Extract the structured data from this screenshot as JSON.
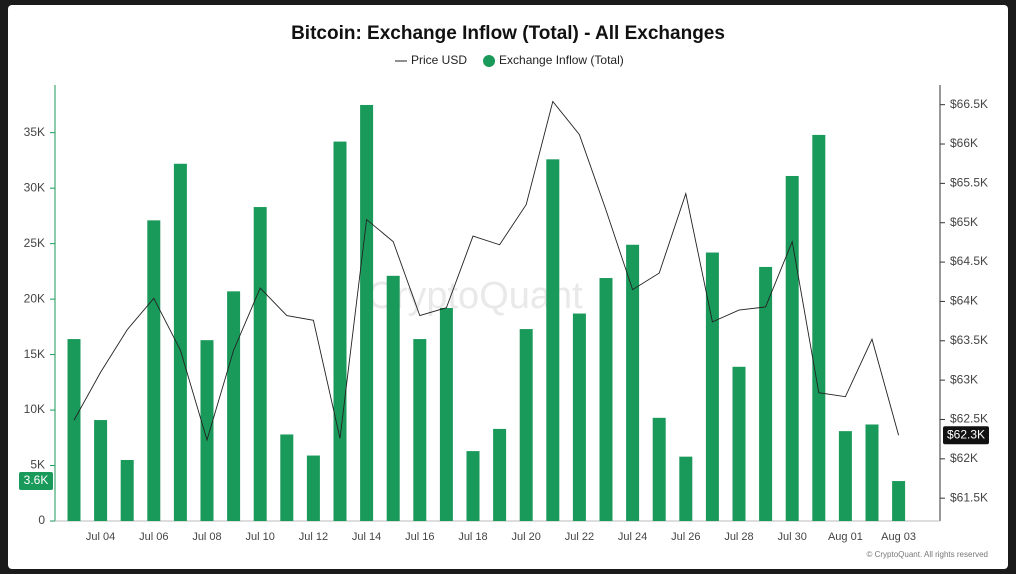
{
  "chart_data": {
    "type": "bar",
    "title": "Bitcoin: Exchange Inflow (Total) - All Exchanges",
    "watermark": "CryptoQuant",
    "copyright": "© CryptoQuant. All rights reserved",
    "categories": [
      null,
      "Jul 04",
      null,
      "Jul 06",
      null,
      "Jul 08",
      null,
      "Jul 10",
      null,
      "Jul 12",
      null,
      "Jul 14",
      null,
      "Jul 16",
      null,
      "Jul 18",
      null,
      "Jul 20",
      null,
      "Jul 22",
      null,
      "Jul 24",
      null,
      "Jul 26",
      null,
      "Jul 28",
      null,
      "Jul 30",
      null,
      "Aug 01",
      null,
      "Aug 03"
    ],
    "series": [
      {
        "name": "Price USD",
        "type": "line",
        "axis": "y2",
        "color": "#222222",
        "values": [
          62490,
          63100,
          63640,
          64040,
          63380,
          62240,
          63380,
          64170,
          63820,
          63760,
          62260,
          65040,
          64760,
          63820,
          63920,
          64830,
          64720,
          65230,
          66540,
          66120,
          65160,
          64150,
          64360,
          65370,
          63740,
          63890,
          63930,
          64760,
          62840,
          62790,
          63520,
          62300
        ],
        "value_labels": [
          null,
          null,
          null,
          null,
          null,
          null,
          null,
          null,
          null,
          null,
          null,
          null,
          null,
          null,
          null,
          null,
          null,
          null,
          null,
          null,
          null,
          null,
          null,
          null,
          null,
          null,
          null,
          null,
          null,
          null,
          null,
          "$62.3K"
        ]
      },
      {
        "name": "Exchange Inflow (Total)",
        "type": "bar",
        "color": "#1a9a5a",
        "values": [
          16400,
          9100,
          5500,
          27100,
          32200,
          16300,
          20700,
          28300,
          7800,
          5900,
          34200,
          37500,
          22100,
          16400,
          19200,
          6300,
          8300,
          17300,
          32600,
          18700,
          21900,
          24900,
          9300,
          5800,
          24200,
          13900,
          22900,
          31100,
          34800,
          8100,
          8700,
          3600
        ],
        "value_labels": [
          null,
          null,
          null,
          null,
          null,
          null,
          null,
          null,
          null,
          null,
          null,
          null,
          null,
          null,
          null,
          null,
          null,
          null,
          null,
          null,
          null,
          null,
          null,
          null,
          null,
          null,
          null,
          null,
          null,
          null,
          null,
          "3.6K"
        ]
      }
    ],
    "ylim": [
      0,
      39300
    ],
    "yticks": [
      0,
      {
        "value": 5000,
        "label": "5K"
      },
      {
        "value": 10000,
        "label": "10K"
      },
      {
        "value": 15000,
        "label": "15K"
      },
      {
        "value": 20000,
        "label": "20K"
      },
      {
        "value": 25000,
        "label": "25K"
      },
      {
        "value": 30000,
        "label": "30K"
      },
      {
        "value": 35000,
        "label": "35K"
      }
    ],
    "y2lim": [
      61210,
      66750
    ],
    "y2ticks": [
      {
        "value": 61500,
        "label": "$61.5K"
      },
      {
        "value": 62000,
        "label": "$62K"
      },
      {
        "value": 62500,
        "label": "$62.5K"
      },
      {
        "value": 63000,
        "label": "$63K"
      },
      {
        "value": 63500,
        "label": "$63.5K"
      },
      {
        "value": 64000,
        "label": "$64K"
      },
      {
        "value": 64500,
        "label": "$64.5K"
      },
      {
        "value": 65000,
        "label": "$65K"
      },
      {
        "value": 65500,
        "label": "$65.5K"
      },
      {
        "value": 66000,
        "label": "$66K"
      },
      {
        "value": 66500,
        "label": "$66.5K"
      }
    ]
  }
}
